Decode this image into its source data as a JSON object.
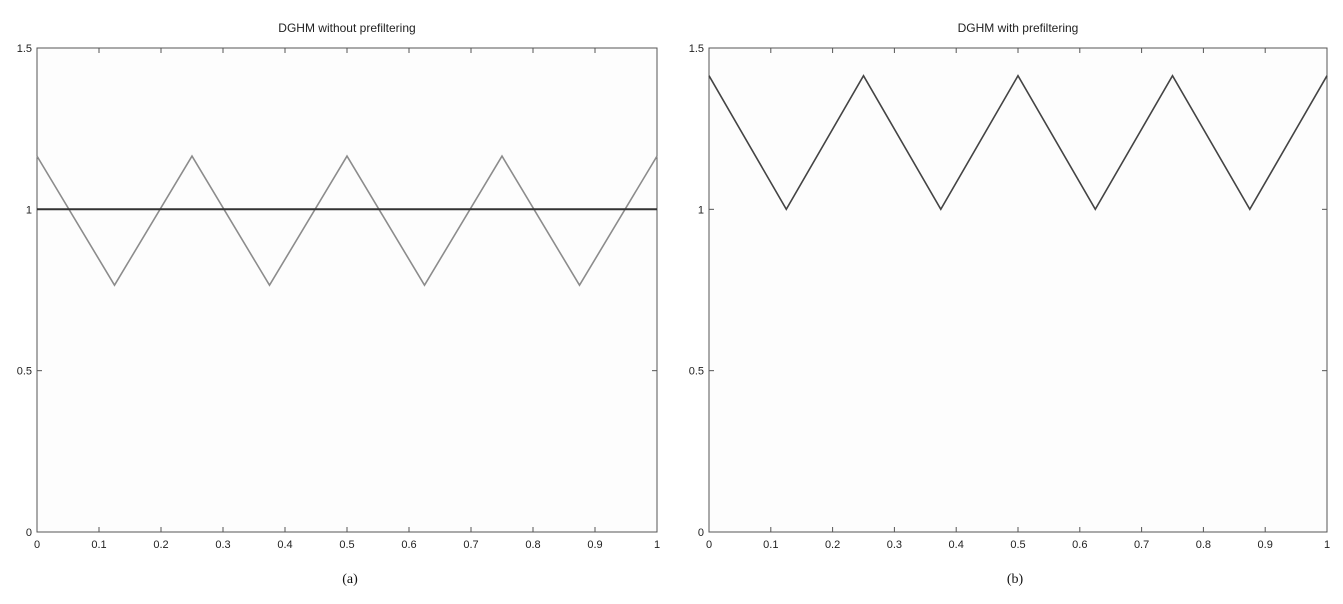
{
  "captions": [
    "(a)",
    "(b)"
  ],
  "chart_data": [
    {
      "type": "line",
      "title": "DGHM without prefiltering",
      "xlabel": "",
      "ylabel": "",
      "xlim": [
        0,
        1
      ],
      "ylim": [
        0,
        1.5
      ],
      "xticks": [
        "0",
        "0.1",
        "0.2",
        "0.3",
        "0.4",
        "0.5",
        "0.6",
        "0.7",
        "0.8",
        "0.9",
        "1"
      ],
      "yticks": [
        "0",
        "0.5",
        "1",
        "1.5"
      ],
      "grid": false,
      "series": [
        {
          "color": "#8c8c8c",
          "x": [
            0,
            0.125,
            0.25,
            0.375,
            0.5,
            0.625,
            0.75,
            0.875,
            1
          ],
          "y": [
            1.165,
            0.765,
            1.165,
            0.765,
            1.165,
            0.765,
            1.165,
            0.765,
            1.165
          ]
        },
        {
          "color": "#333333",
          "x": [
            0,
            1
          ],
          "y": [
            1.0,
            1.0
          ]
        }
      ]
    },
    {
      "type": "line",
      "title": "DGHM with prefiltering",
      "xlabel": "",
      "ylabel": "",
      "xlim": [
        0,
        1
      ],
      "ylim": [
        0,
        1.5
      ],
      "xticks": [
        "0",
        "0.1",
        "0.2",
        "0.3",
        "0.4",
        "0.5",
        "0.6",
        "0.7",
        "0.8",
        "0.9",
        "1"
      ],
      "yticks": [
        "0",
        "0.5",
        "1",
        "1.5"
      ],
      "grid": false,
      "series": [
        {
          "color": "#444444",
          "x": [
            0,
            0.125,
            0.25,
            0.375,
            0.5,
            0.625,
            0.75,
            0.875,
            1
          ],
          "y": [
            1.414,
            1.0,
            1.414,
            1.0,
            1.414,
            1.0,
            1.414,
            1.0,
            1.414
          ]
        }
      ]
    }
  ]
}
